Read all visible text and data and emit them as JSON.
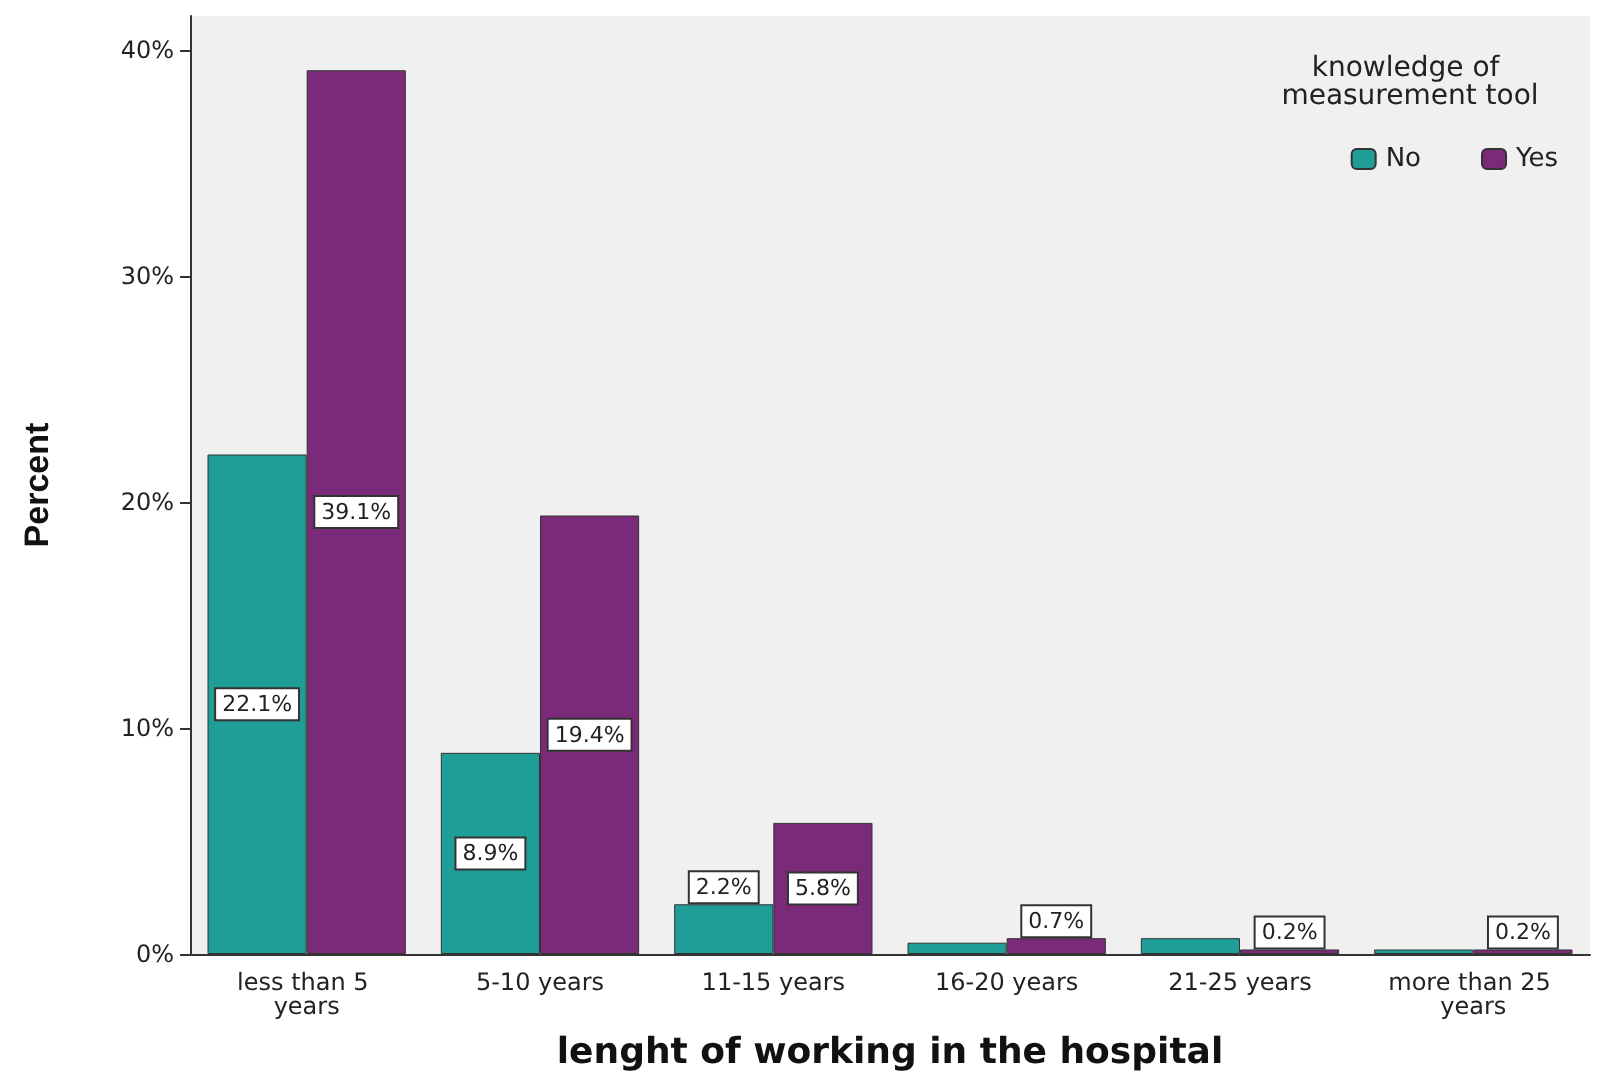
{
  "chart_data": {
    "type": "bar",
    "xlabel": "lenght of working in the hospital",
    "ylabel": "Percent",
    "legend_title": "knowledge of measurement tool",
    "categories": [
      "less than 5 years",
      "5-10 years",
      "11-15 years",
      "16-20 years",
      "21-25 years",
      "more than 25 years"
    ],
    "series": [
      {
        "name": "No",
        "color": "#1f9e98",
        "values": [
          22.1,
          8.9,
          2.2,
          0.5,
          0.7,
          0.2
        ],
        "value_labels": [
          "22.1%",
          "8.9%",
          "2.2%",
          null,
          null,
          null
        ]
      },
      {
        "name": "Yes",
        "color": "#7b2a7a",
        "values": [
          39.1,
          19.4,
          5.8,
          0.7,
          0.2,
          0.2
        ],
        "value_labels": [
          "39.1%",
          "19.4%",
          "5.8%",
          "0.7%",
          "0.2%",
          "0.2%"
        ]
      }
    ],
    "ylim": [
      0,
      41.5
    ],
    "yticks": [
      {
        "value": 0,
        "label": "0%"
      },
      {
        "value": 10,
        "label": "10%"
      },
      {
        "value": 20,
        "label": "20%"
      },
      {
        "value": 30,
        "label": "30%"
      },
      {
        "value": 40,
        "label": "40%"
      }
    ],
    "grid": false,
    "legend": "top right"
  }
}
